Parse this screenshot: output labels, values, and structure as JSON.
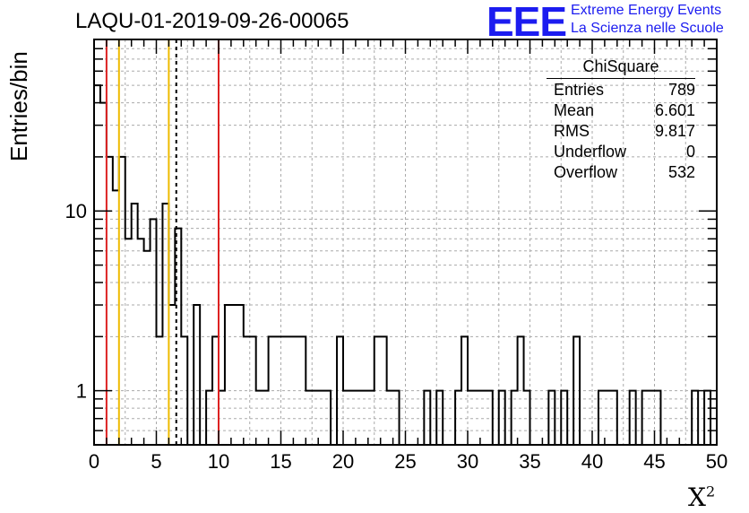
{
  "title": "LAQU-01-2019-09-26-00065",
  "logo": {
    "text": "EEE",
    "line1": "Extreme Energy Events",
    "line2": "La Scienza nelle Scuole",
    "color": "#1c1cf0"
  },
  "stats": {
    "title": "ChiSquare",
    "rows": [
      {
        "label": "Entries",
        "value": "789"
      },
      {
        "label": "Mean",
        "value": "6.601"
      },
      {
        "label": "RMS",
        "value": "9.817"
      },
      {
        "label": "Underflow",
        "value": "0"
      },
      {
        "label": "Overflow",
        "value": "532"
      }
    ]
  },
  "chart_data": {
    "type": "histogram",
    "title": "LAQU-01-2019-09-26-00065",
    "xlabel": "X",
    "xlabel_sup": "2",
    "ylabel": "Entries/bin",
    "xlim": [
      0,
      50
    ],
    "ylim": [
      0.5,
      90
    ],
    "yscale": "log",
    "bin_width": 0.5,
    "grid": true,
    "x_ticks": [
      "0",
      "5",
      "10",
      "15",
      "20",
      "25",
      "30",
      "35",
      "40",
      "45",
      "50"
    ],
    "y_ticks": [
      "1",
      "10"
    ],
    "counts": [
      50,
      40,
      20,
      13,
      20,
      7,
      11,
      7,
      6,
      9,
      2,
      11,
      3,
      8,
      2,
      0,
      3,
      0,
      1,
      2,
      1,
      3,
      3,
      3,
      2,
      2,
      1,
      1,
      2,
      2,
      2,
      2,
      2,
      2,
      1,
      1,
      1,
      1,
      0,
      2,
      1,
      1,
      1,
      1,
      1,
      2,
      2,
      1,
      1,
      0,
      0,
      0,
      0,
      1,
      0,
      1,
      0,
      0,
      1,
      2,
      1,
      1,
      1,
      1,
      0,
      1,
      0,
      1,
      2,
      1,
      0,
      0,
      0,
      1,
      0,
      1,
      0,
      2,
      0,
      0,
      0,
      1,
      1,
      1,
      0,
      0,
      1,
      0,
      1,
      1,
      1,
      0,
      0,
      0,
      0,
      0,
      1,
      0,
      1,
      0
    ],
    "reference_lines": [
      {
        "x": 1,
        "color": "#dd2222",
        "style": "solid"
      },
      {
        "x": 2,
        "color": "#eebb00",
        "style": "solid"
      },
      {
        "x": 6,
        "color": "#eebb00",
        "style": "solid"
      },
      {
        "x": 6.601,
        "color": "#000000",
        "style": "dashed"
      },
      {
        "x": 10,
        "color": "#dd2222",
        "style": "solid"
      }
    ]
  }
}
